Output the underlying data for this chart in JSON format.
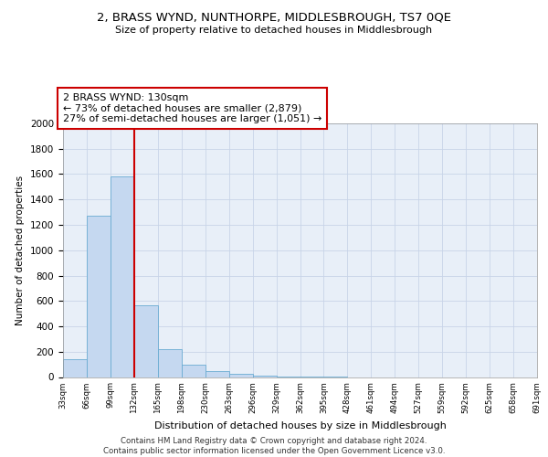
{
  "title": "2, BRASS WYND, NUNTHORPE, MIDDLESBROUGH, TS7 0QE",
  "subtitle": "Size of property relative to detached houses in Middlesbrough",
  "xlabel": "Distribution of detached houses by size in Middlesbrough",
  "ylabel": "Number of detached properties",
  "bar_color": "#c5d8f0",
  "bar_edge_color": "#6aabd2",
  "background_color": "#ffffff",
  "plot_bg_color": "#e8eff8",
  "grid_color": "#c8d4e8",
  "annotation_box_color": "#cc0000",
  "annotation_text": "2 BRASS WYND: 130sqm\n← 73% of detached houses are smaller (2,879)\n27% of semi-detached houses are larger (1,051) →",
  "property_line_x": 132,
  "bin_edges": [
    33,
    66,
    99,
    132,
    165,
    198,
    231,
    264,
    297,
    330,
    363,
    396,
    429,
    462,
    495,
    528,
    561,
    594,
    627,
    660,
    693
  ],
  "bar_heights": [
    140,
    1270,
    1580,
    565,
    220,
    95,
    50,
    25,
    10,
    5,
    2,
    1,
    0,
    0,
    0,
    0,
    0,
    0,
    0,
    0
  ],
  "tick_labels": [
    "33sqm",
    "66sqm",
    "99sqm",
    "132sqm",
    "165sqm",
    "198sqm",
    "230sqm",
    "263sqm",
    "296sqm",
    "329sqm",
    "362sqm",
    "395sqm",
    "428sqm",
    "461sqm",
    "494sqm",
    "527sqm",
    "559sqm",
    "592sqm",
    "625sqm",
    "658sqm",
    "691sqm"
  ],
  "ylim": [
    0,
    2000
  ],
  "yticks": [
    0,
    200,
    400,
    600,
    800,
    1000,
    1200,
    1400,
    1600,
    1800,
    2000
  ],
  "footer": "Contains HM Land Registry data © Crown copyright and database right 2024.\nContains public sector information licensed under the Open Government Licence v3.0."
}
